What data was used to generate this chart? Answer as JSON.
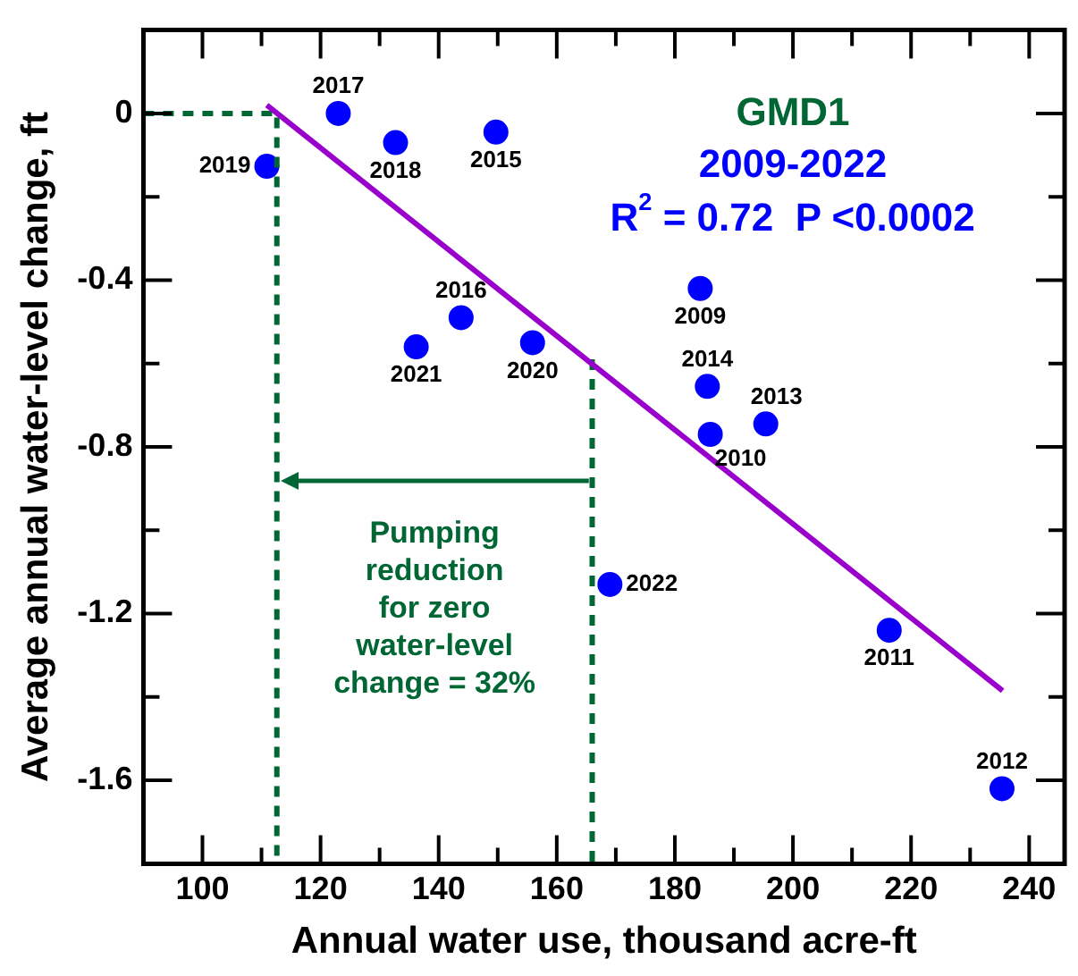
{
  "chart_data": {
    "type": "scatter",
    "title": "GMD1",
    "subtitle": "2009-2022",
    "xlabel": "Annual water use, thousand acre-ft",
    "ylabel": "Average annual water-level change, ft",
    "xlim": [
      90,
      246
    ],
    "ylim": [
      -1.8,
      0.2
    ],
    "xticks": [
      100,
      {
        "value": 110,
        "label": null
      },
      120,
      {
        "value": 130,
        "label": null
      },
      140,
      {
        "value": 150,
        "label": null
      },
      160,
      {
        "value": 170,
        "label": null
      },
      180,
      {
        "value": 190,
        "label": null
      },
      200,
      {
        "value": 210,
        "label": null
      },
      220,
      {
        "value": 230,
        "label": null
      },
      240
    ],
    "yticks": [
      0,
      {
        "value": -0.2,
        "label": null
      },
      -0.4,
      {
        "value": -0.6,
        "label": null
      },
      -0.8,
      {
        "value": -1.0,
        "label": null
      },
      -1.2,
      {
        "value": -1.4,
        "label": null
      },
      -1.6
    ],
    "grid": false,
    "legend": false,
    "marker": "circle",
    "series": [
      {
        "type": "line",
        "color": "#9900cc",
        "marker": "none",
        "x": [
          110.9,
          235.5
        ],
        "values": [
          0.02,
          -1.385
        ]
      },
      {
        "type": "line",
        "color": "#006633",
        "line_style": "dashed",
        "marker": "none",
        "x": [
          90,
          112.6,
          112.6
        ],
        "values": [
          0,
          0,
          -1.8
        ]
      },
      {
        "type": "line",
        "color": "#006633",
        "line_style": "dashed",
        "marker": "none",
        "x": [
          166,
          166
        ],
        "values": [
          -0.59,
          -1.8
        ]
      },
      {
        "color": "#0000ff",
        "x": [
          184.3,
          186.0,
          216.3,
          235.4,
          195.4,
          185.5,
          149.7,
          143.8,
          123.0,
          132.7,
          110.9,
          155.9,
          136.2,
          169.0
        ],
        "values": [
          -0.42,
          -0.77,
          -1.24,
          -1.62,
          -0.745,
          -0.655,
          -0.045,
          -0.49,
          0,
          -0.07,
          -0.127,
          -0.55,
          -0.56,
          -1.13
        ]
      }
    ],
    "annotations": [
      "R$^{2}$ = 0.72  P <0.0002",
      "Pumping\nreduction\nfor zero\nwater-level\nchange = 32%",
      {
        "text": "2009",
        "x": 184.3,
        "y": -0.42
      },
      {
        "text": "2010",
        "x": 186.0,
        "y": -0.77
      },
      {
        "text": "2011",
        "x": 216.3,
        "y": -1.24
      },
      {
        "text": "2012",
        "x": 235.4,
        "y": -1.62
      },
      {
        "text": "2013",
        "x": 195.4,
        "y": -0.745
      },
      {
        "text": "2014",
        "x": 185.5,
        "y": -0.655
      },
      {
        "text": "2015",
        "x": 149.7,
        "y": -0.045
      },
      {
        "text": "2016",
        "x": 143.8,
        "y": -0.49
      },
      {
        "text": "2017",
        "x": 123.0,
        "y": 0
      },
      {
        "text": "2018",
        "x": 132.7,
        "y": -0.07
      },
      {
        "text": "2019",
        "x": 110.9,
        "y": -0.127
      },
      {
        "text": "2020",
        "x": 155.9,
        "y": -0.55
      },
      {
        "text": "2021",
        "x": 136.2,
        "y": -0.56
      },
      {
        "text": "2022",
        "x": 169.0,
        "y": -1.13
      }
    ]
  }
}
